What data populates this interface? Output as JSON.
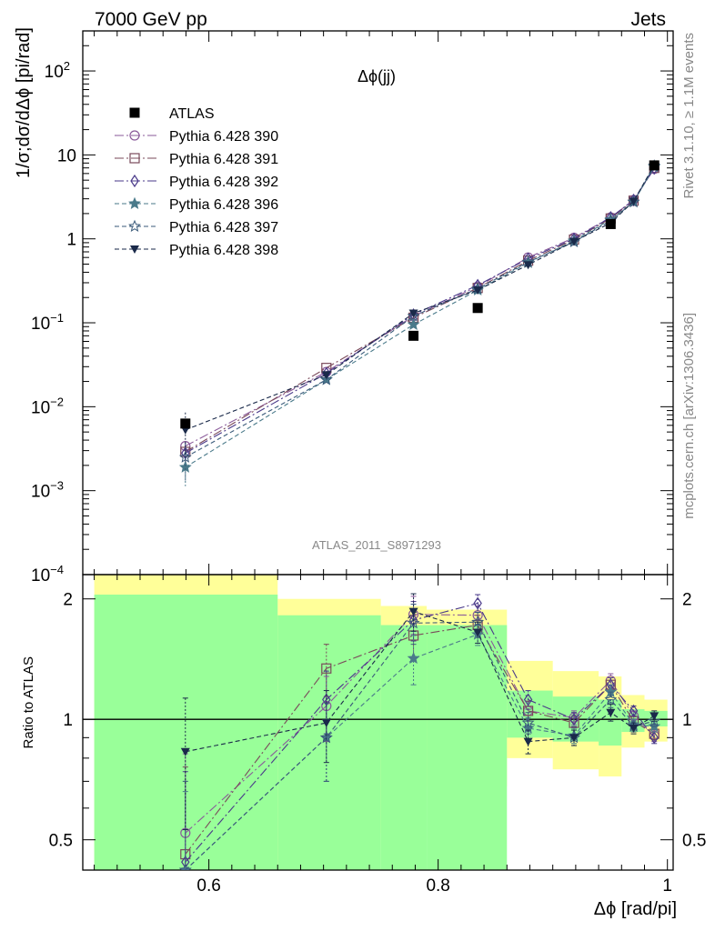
{
  "header": {
    "left": "7000 GeV pp",
    "right": "Jets"
  },
  "side": {
    "rivet": "Rivet 3.1.10, ≥ 1.1M events",
    "mcplots": "mcplots.cern.ch [arXiv:1306.3436]"
  },
  "analysis_id": "ATLAS_2011_S8971293",
  "chart_data": [
    {
      "type": "scatter",
      "panel": "main",
      "title": "Δϕ(jj)",
      "xlabel": "Δϕ [rad/pi]",
      "ylabel": "1/σ;dσ/dΔϕ [pi/rad]",
      "xlim": [
        0.49,
        1.005
      ],
      "ylim": [
        0.0001,
        300
      ],
      "yscale": "log",
      "yticks": [
        {
          "v": 0.0001,
          "base": "10",
          "exp": "−4"
        },
        {
          "v": 0.001,
          "base": "10",
          "exp": "−3"
        },
        {
          "v": 0.01,
          "base": "10",
          "exp": "−2"
        },
        {
          "v": 0.1,
          "base": "10",
          "exp": "−1"
        },
        {
          "v": 1,
          "base": "1",
          "exp": ""
        },
        {
          "v": 10,
          "base": "10",
          "exp": ""
        },
        {
          "v": 100,
          "base": "10",
          "exp": "2"
        }
      ],
      "legend_position": "top-left",
      "x": [
        0.5795,
        0.7025,
        0.7785,
        0.8345,
        0.8785,
        0.9185,
        0.9505,
        0.9705,
        0.9885
      ],
      "data": {
        "name": "ATLAS",
        "values": [
          0.0063,
          null,
          0.07,
          0.15,
          null,
          null,
          1.5,
          null,
          7.5
        ]
      },
      "series": [
        {
          "name": "Pythia 6.428 390",
          "marker": "circle-open",
          "dash": "10,3,2,3",
          "color": "#8a5a9a",
          "values": [
            0.0034,
            0.026,
            0.12,
            0.27,
            0.6,
            1.03,
            1.8,
            2.9,
            6.8
          ]
        },
        {
          "name": "Pythia 6.428 391",
          "marker": "square-open",
          "dash": "10,3,2,3",
          "color": "#7a4a5a",
          "values": [
            0.0029,
            0.029,
            0.115,
            0.26,
            0.55,
            0.98,
            1.75,
            2.85,
            7.0
          ]
        },
        {
          "name": "Pythia 6.428 392",
          "marker": "diamond-open",
          "dash": "10,3,2,3",
          "color": "#4a3a8a",
          "values": [
            0.0028,
            0.025,
            0.125,
            0.28,
            0.58,
            1.0,
            1.8,
            2.9,
            6.9
          ]
        },
        {
          "name": "Pythia 6.428 396",
          "marker": "star-filled",
          "dash": "5,3",
          "color": "#4a7a8a",
          "values": [
            0.0019,
            0.021,
            0.095,
            0.245,
            0.52,
            0.95,
            1.7,
            2.75,
            7.2
          ]
        },
        {
          "name": "Pythia 6.428 397",
          "marker": "star-open",
          "dash": "5,3",
          "color": "#3a5a7a",
          "values": [
            0.0025,
            0.021,
            0.12,
            0.255,
            0.53,
            0.92,
            1.65,
            2.75,
            7.4
          ]
        },
        {
          "name": "Pythia 6.428 398",
          "marker": "triangle-down",
          "dash": "5,3",
          "color": "#1a2a4a",
          "values": [
            0.0053,
            0.024,
            0.13,
            0.245,
            0.49,
            0.93,
            1.55,
            2.8,
            7.6
          ]
        }
      ]
    },
    {
      "type": "scatter",
      "panel": "ratio",
      "ylabel": "Ratio to ATLAS",
      "xlabel": "Δϕ [rad/pi]",
      "xlim": [
        0.49,
        1.005
      ],
      "xticks": [
        0.6,
        0.8,
        1
      ],
      "xtick_labels": [
        "0.6",
        "0.8",
        "1"
      ],
      "ylim": [
        0.42,
        2.3
      ],
      "yscale": "log",
      "yticks": [
        0.5,
        1,
        2
      ],
      "ytick_labels": [
        "0.5",
        "1",
        "2"
      ],
      "bands": {
        "edges": [
          0.5,
          0.66,
          0.75,
          0.79,
          0.86,
          0.9,
          0.94,
          0.96,
          0.98,
          1.0
        ],
        "yellow_lo": [
          0.42,
          0.42,
          0.52,
          0.68,
          0.8,
          0.75,
          0.72,
          0.85,
          0.88
        ],
        "yellow_hi": [
          2.3,
          2.0,
          1.92,
          1.88,
          1.4,
          1.32,
          1.28,
          1.15,
          1.12
        ],
        "green_lo": [
          0.42,
          0.42,
          0.42,
          0.42,
          0.9,
          0.88,
          0.86,
          0.93,
          0.96
        ],
        "green_hi": [
          2.05,
          1.82,
          1.72,
          1.72,
          1.18,
          1.14,
          1.12,
          1.06,
          1.05
        ]
      },
      "series_values": [
        [
          0.52,
          1.08,
          1.83,
          1.82,
          1.05,
          1.01,
          1.25,
          1.02,
          0.91
        ],
        [
          0.46,
          1.34,
          1.62,
          1.72,
          1.05,
          0.98,
          1.22,
          0.99,
          0.92
        ],
        [
          0.44,
          1.12,
          1.77,
          1.95,
          1.12,
          1.0,
          1.22,
          1.05,
          0.9
        ],
        [
          0.36,
          0.9,
          1.42,
          1.63,
          0.95,
          0.91,
          1.17,
          0.97,
          0.96
        ],
        [
          0.4,
          0.9,
          1.74,
          1.75,
          0.98,
          0.9,
          1.12,
          0.96,
          0.99
        ],
        [
          0.83,
          0.98,
          1.86,
          1.65,
          0.88,
          0.9,
          1.04,
          0.95,
          1.02
        ]
      ],
      "error_half_width": [
        0.3,
        0.2,
        0.2,
        0.1,
        0.06,
        0.04,
        0.05,
        0.03,
        0.03
      ]
    }
  ]
}
